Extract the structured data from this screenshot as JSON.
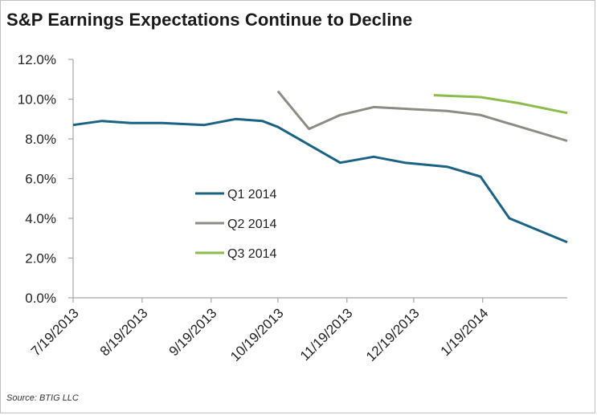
{
  "title": "S&P Earnings Expectations Continue to Decline",
  "source": "Source: BTIG LLC",
  "colors": {
    "q1": "#1b6385",
    "q2": "#8c8c84",
    "q3": "#8cbc4c",
    "axis": "#a6a6a6"
  },
  "chart_data": {
    "type": "line",
    "title": "S&P Earnings Expectations Continue to Decline",
    "xlabel": "",
    "ylabel": "",
    "ylim": [
      0,
      12
    ],
    "yticks": [
      "0.0%",
      "2.0%",
      "4.0%",
      "6.0%",
      "8.0%",
      "10.0%",
      "12.0%"
    ],
    "xticks": [
      "7/19/2013",
      "8/19/2013",
      "9/19/2013",
      "10/19/2013",
      "11/19/2013",
      "12/19/2013",
      "1/19/2014"
    ],
    "xlim": [
      "7/19/2013",
      "2/26/2014"
    ],
    "grid": false,
    "legend_position": "center-left",
    "series": [
      {
        "name": "Q1 2014",
        "points": [
          [
            "7/19/2013",
            8.7
          ],
          [
            "8/1/2013",
            8.9
          ],
          [
            "8/14/2013",
            8.8
          ],
          [
            "8/28/2013",
            8.8
          ],
          [
            "9/16/2013",
            8.7
          ],
          [
            "9/30/2013",
            9.0
          ],
          [
            "10/12/2013",
            8.9
          ],
          [
            "10/19/2013",
            8.6
          ],
          [
            "11/2/2013",
            7.7
          ],
          [
            "11/16/2013",
            6.8
          ],
          [
            "12/1/2013",
            7.1
          ],
          [
            "12/15/2013",
            6.8
          ],
          [
            "1/3/2014",
            6.6
          ],
          [
            "1/18/2014",
            6.1
          ],
          [
            "1/31/2014",
            4.0
          ],
          [
            "2/26/2014",
            2.8
          ]
        ]
      },
      {
        "name": "Q2 2014",
        "points": [
          [
            "10/19/2013",
            10.4
          ],
          [
            "11/2/2013",
            8.5
          ],
          [
            "11/16/2013",
            9.2
          ],
          [
            "12/1/2013",
            9.6
          ],
          [
            "1/3/2014",
            9.4
          ],
          [
            "1/18/2014",
            9.2
          ],
          [
            "2/26/2014",
            7.9
          ]
        ]
      },
      {
        "name": "Q3 2014",
        "points": [
          [
            "12/28/2013",
            10.2
          ],
          [
            "1/18/2014",
            10.1
          ],
          [
            "2/4/2014",
            9.8
          ],
          [
            "2/26/2014",
            9.3
          ]
        ]
      }
    ]
  }
}
